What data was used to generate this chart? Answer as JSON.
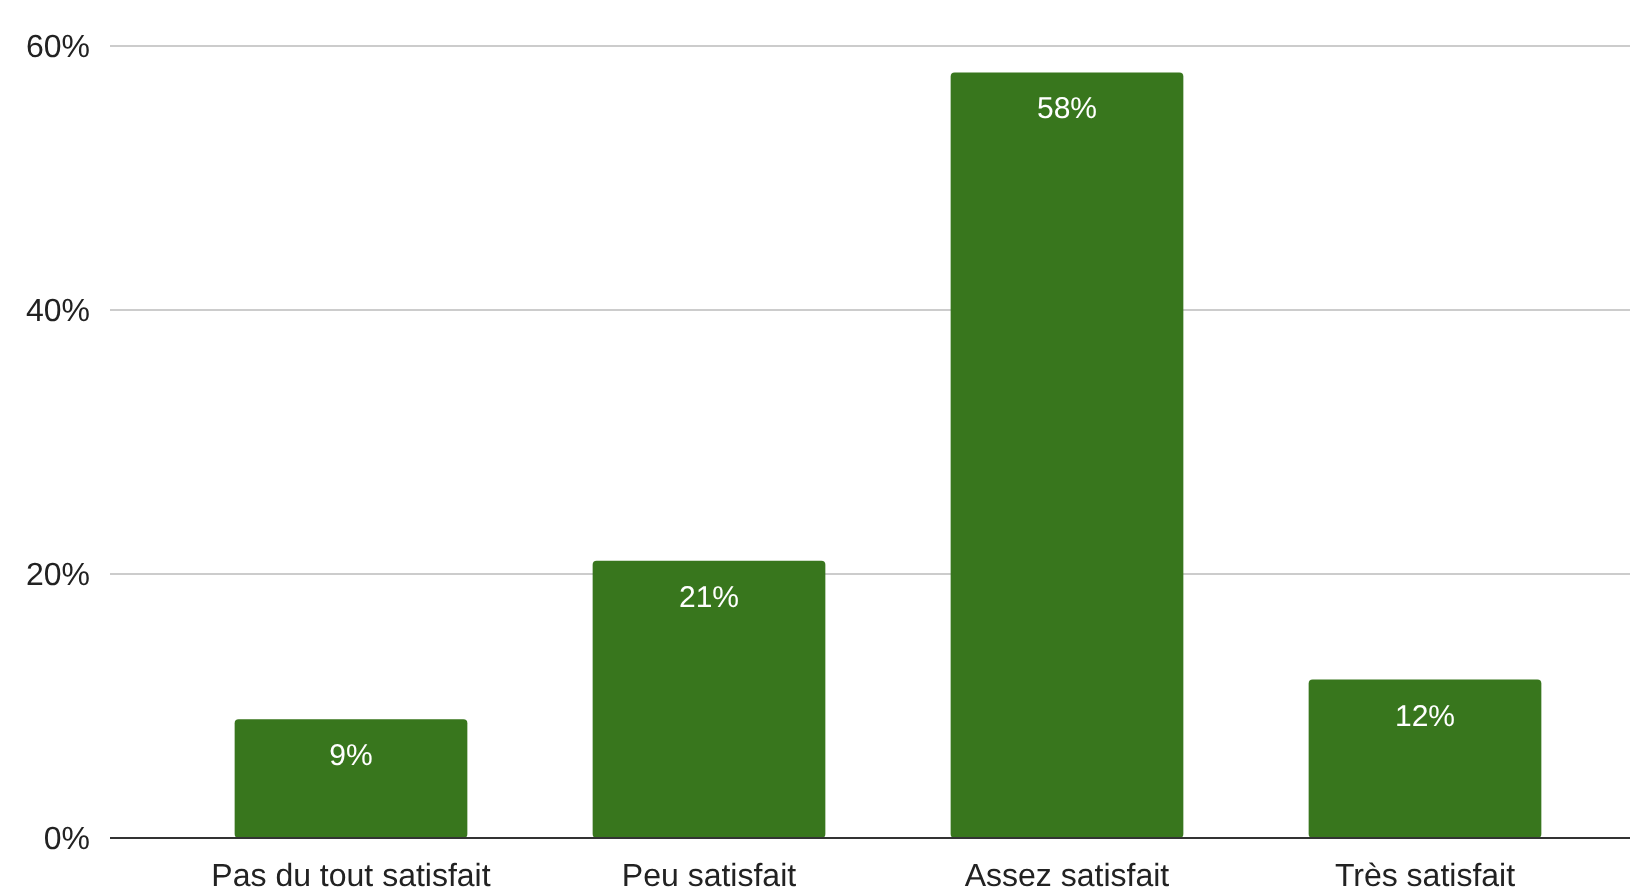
{
  "chart_data": {
    "type": "bar",
    "categories": [
      "Pas du tout satisfait",
      "Peu satisfait",
      "Assez satisfait",
      "Très satisfait"
    ],
    "values": [
      9,
      21,
      58,
      12
    ],
    "value_labels": [
      "9%",
      "21%",
      "58%",
      "12%"
    ],
    "color": "#38761d",
    "ylim": [
      0,
      60
    ],
    "yticks": [
      {
        "value": 0,
        "label": "0%"
      },
      {
        "value": 20,
        "label": "20%"
      },
      {
        "value": 40,
        "label": "40%"
      },
      {
        "value": 60,
        "label": "60%"
      }
    ],
    "grid": true
  }
}
